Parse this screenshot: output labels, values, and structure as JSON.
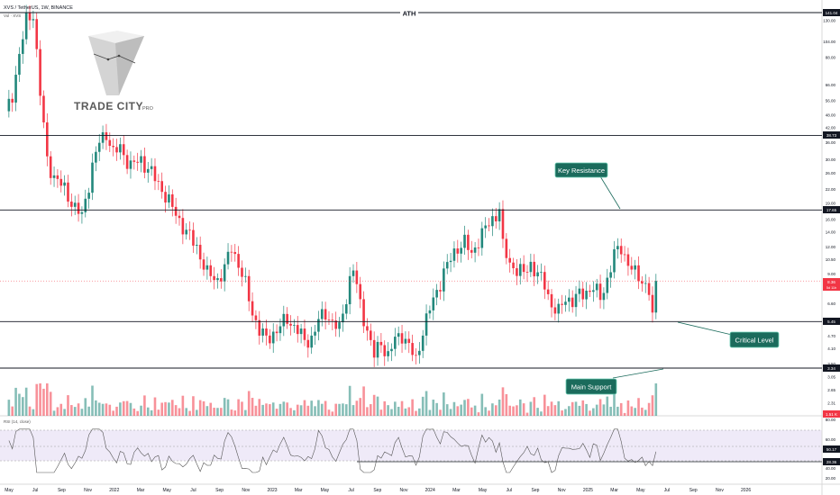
{
  "header": {
    "symbol": "XVS / TetherUS, 1W, BINANCE",
    "volume_label": "Vol · XVS"
  },
  "rsi_label": "RSI (14, close)",
  "logo": {
    "brand": "TRADE CITY",
    "suffix": "PRO"
  },
  "annotations": {
    "ath": "ATH",
    "key_resistance": "Key Resistance",
    "critical_level": "Critical Level",
    "main_support": "Main Support"
  },
  "price_badges": {
    "ath": "141.04",
    "l1": "38.73",
    "l2": "17.65",
    "current": "8.36",
    "current_sub": "5d 11h",
    "l3": "5.45",
    "l4": "3.34",
    "volume": "1.51 K"
  },
  "rsi_badges": {
    "value": "50.17",
    "low": "28.36"
  },
  "colors": {
    "up": "#22887c",
    "down": "#f23645",
    "teal_box": "#1b6b5c"
  },
  "chart_data": {
    "type": "candlestick",
    "title": "XVS / TetherUS, 1W, BINANCE",
    "scale": "log",
    "y_ticks": [
      130.0,
      104.0,
      88.0,
      66.0,
      56.0,
      48.0,
      42.0,
      36.0,
      30.0,
      26.0,
      22.0,
      19.0,
      16.0,
      14.0,
      12.0,
      10.5,
      9.0,
      7.8,
      6.6,
      5.6,
      4.7,
      4.1,
      3.5,
      3.05,
      2.65,
      2.31
    ],
    "x_ticks": [
      "May",
      "Jul",
      "Sep",
      "Nov",
      "2022",
      "Mar",
      "May",
      "Jul",
      "Sep",
      "Nov",
      "2023",
      "Mar",
      "May",
      "Jul",
      "Sep",
      "Nov",
      "2024",
      "Mar",
      "May",
      "Jul",
      "Sep",
      "Nov",
      "2025",
      "Mar",
      "May",
      "Jul",
      "Sep",
      "Nov",
      "2026"
    ],
    "horizontal_levels": [
      141.04,
      38.73,
      17.65,
      5.45,
      3.34
    ],
    "price_path": [
      [
        0,
        48
      ],
      [
        2,
        60
      ],
      [
        4,
        90
      ],
      [
        6,
        130
      ],
      [
        8,
        141
      ],
      [
        10,
        60
      ],
      [
        12,
        30
      ],
      [
        14,
        25
      ],
      [
        17,
        22
      ],
      [
        20,
        18
      ],
      [
        22,
        16.5
      ],
      [
        25,
        28
      ],
      [
        27,
        36
      ],
      [
        29,
        40
      ],
      [
        31,
        32
      ],
      [
        33,
        34
      ],
      [
        36,
        28
      ],
      [
        39,
        30
      ],
      [
        42,
        26
      ],
      [
        45,
        22
      ],
      [
        48,
        18
      ],
      [
        52,
        14
      ],
      [
        55,
        12
      ],
      [
        58,
        9
      ],
      [
        61,
        8.5
      ],
      [
        63,
        9.5
      ],
      [
        65,
        12
      ],
      [
        67,
        10
      ],
      [
        69,
        8
      ],
      [
        71,
        6
      ],
      [
        73,
        5
      ],
      [
        75,
        4.5
      ],
      [
        78,
        5
      ],
      [
        81,
        5.6
      ],
      [
        84,
        5
      ],
      [
        86,
        4.4
      ],
      [
        88,
        4.6
      ],
      [
        90,
        5.5
      ],
      [
        92,
        6
      ],
      [
        94,
        5.4
      ],
      [
        96,
        5
      ],
      [
        99,
        8.5
      ],
      [
        100,
        9.5
      ],
      [
        102,
        6.5
      ],
      [
        104,
        5
      ],
      [
        106,
        3.8
      ],
      [
        108,
        4.4
      ],
      [
        110,
        3.8
      ],
      [
        112,
        4.5
      ],
      [
        114,
        4.8
      ],
      [
        116,
        4.2
      ],
      [
        118,
        3.6
      ],
      [
        120,
        5
      ],
      [
        122,
        6.2
      ],
      [
        124,
        7.5
      ],
      [
        126,
        9.2
      ],
      [
        128,
        10.5
      ],
      [
        130,
        12
      ],
      [
        132,
        12.6
      ],
      [
        134,
        11
      ],
      [
        136,
        13
      ],
      [
        138,
        14.5
      ],
      [
        140,
        16
      ],
      [
        142,
        18
      ],
      [
        143,
        12
      ],
      [
        145,
        10
      ],
      [
        147,
        9.5
      ],
      [
        149,
        9
      ],
      [
        151,
        10
      ],
      [
        153,
        9
      ],
      [
        155,
        8
      ],
      [
        157,
        6.5
      ],
      [
        159,
        6
      ],
      [
        161,
        7
      ],
      [
        163,
        6.8
      ],
      [
        165,
        7.2
      ],
      [
        167,
        7.5
      ],
      [
        169,
        7.8
      ],
      [
        171,
        7
      ],
      [
        173,
        8.5
      ],
      [
        175,
        11
      ],
      [
        177,
        12
      ],
      [
        179,
        10
      ],
      [
        181,
        9
      ],
      [
        183,
        8.5
      ],
      [
        185,
        7.5
      ],
      [
        186,
        5.6
      ],
      [
        187,
        8.36
      ]
    ],
    "rsi": {
      "value": 50.17,
      "levels": [
        70,
        50,
        30
      ],
      "low_marker": 28.36
    }
  }
}
